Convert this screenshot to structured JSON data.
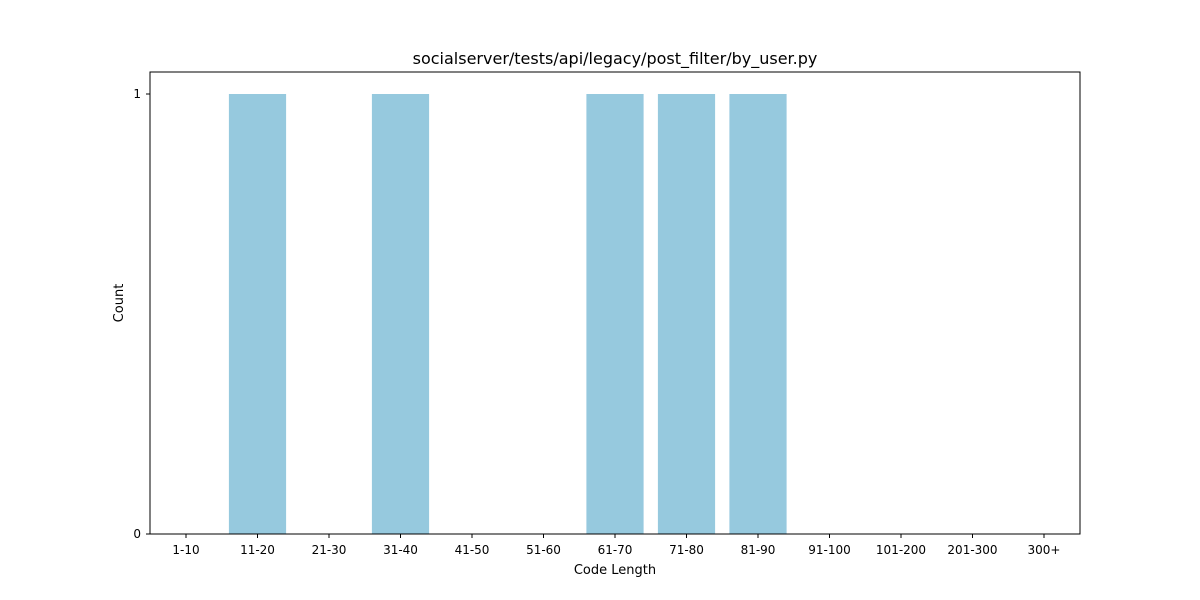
{
  "chart_data": {
    "type": "bar",
    "title": "socialserver/tests/api/legacy/post_filter/by_user.py",
    "xlabel": "Code Length",
    "ylabel": "Count",
    "categories": [
      "1-10",
      "11-20",
      "21-30",
      "31-40",
      "41-50",
      "51-60",
      "61-70",
      "71-80",
      "81-90",
      "91-100",
      "101-200",
      "201-300",
      "300+"
    ],
    "values": [
      0,
      1,
      0,
      1,
      0,
      0,
      1,
      1,
      1,
      0,
      0,
      0,
      0
    ],
    "yticks": [
      "0",
      "1"
    ],
    "ylim": [
      0,
      1.05
    ],
    "grid": false,
    "bar_color": "#96c9de"
  }
}
